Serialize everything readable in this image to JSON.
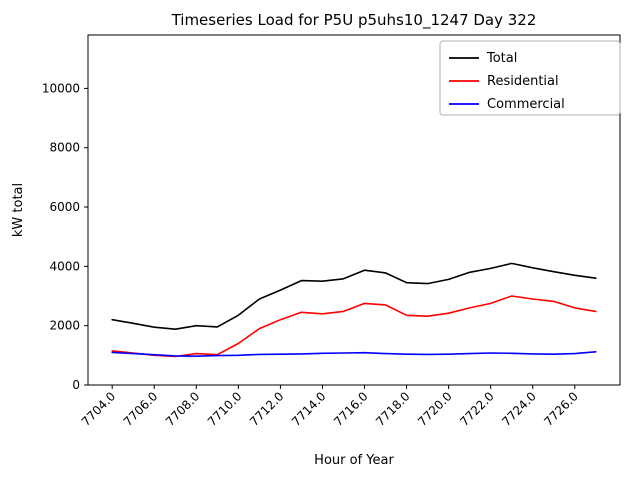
{
  "chart_data": {
    "type": "line",
    "title": "Timeseries Load for P5U p5uhs10_1247  Day 322",
    "xlabel": "Hour of Year",
    "ylabel": "kW total",
    "xlim": [
      7702.85,
      7728.15
    ],
    "ylim": [
      0,
      11800
    ],
    "grid": false,
    "legend_position": "upper-right",
    "x": [
      7704,
      7705,
      7706,
      7707,
      7708,
      7709,
      7710,
      7711,
      7712,
      7713,
      7714,
      7715,
      7716,
      7717,
      7718,
      7719,
      7720,
      7721,
      7722,
      7723,
      7724,
      7725,
      7726,
      7727
    ],
    "series": [
      {
        "name": "Total",
        "color": "#000000",
        "values": [
          2200,
          2080,
          1950,
          1880,
          2000,
          1960,
          2350,
          2900,
          3200,
          3520,
          3500,
          3580,
          3870,
          3780,
          3450,
          3420,
          3560,
          3800,
          3930,
          4100,
          3950,
          3820,
          3700,
          3600
        ]
      },
      {
        "name": "Residential",
        "color": "#ff0000",
        "values": [
          1150,
          1080,
          1000,
          960,
          1060,
          1020,
          1400,
          1900,
          2200,
          2450,
          2400,
          2480,
          2750,
          2700,
          2350,
          2320,
          2420,
          2600,
          2750,
          3000,
          2900,
          2820,
          2600,
          2480
        ]
      },
      {
        "name": "Commercial",
        "color": "#0000ff",
        "values": [
          1100,
          1060,
          1020,
          980,
          970,
          990,
          1000,
          1030,
          1040,
          1050,
          1070,
          1080,
          1090,
          1060,
          1040,
          1030,
          1040,
          1060,
          1080,
          1070,
          1050,
          1040,
          1060,
          1120
        ]
      }
    ],
    "xticks": {
      "values": [
        7704,
        7706,
        7708,
        7710,
        7712,
        7714,
        7716,
        7718,
        7720,
        7722,
        7724,
        7726
      ],
      "labels": [
        "7704.0",
        "7706.0",
        "7708.0",
        "7710.0",
        "7712.0",
        "7714.0",
        "7716.0",
        "7718.0",
        "7720.0",
        "7722.0",
        "7724.0",
        "7726.0"
      ]
    },
    "yticks": {
      "values": [
        0,
        2000,
        4000,
        6000,
        8000,
        10000
      ],
      "labels": [
        "0",
        "2000",
        "4000",
        "6000",
        "8000",
        "10000"
      ]
    }
  }
}
